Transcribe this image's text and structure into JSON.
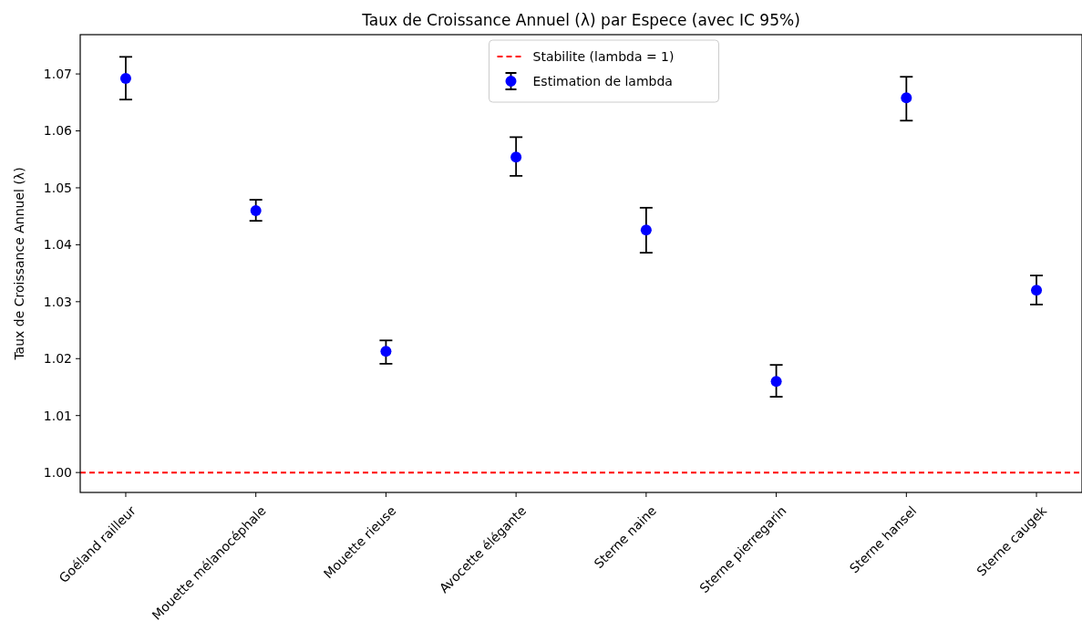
{
  "chart_data": {
    "type": "scatter",
    "title": "Taux de Croissance Annuel (λ) par Espece (avec IC 95%)",
    "ylabel": "Taux de Croissance Annuel (λ)",
    "categories": [
      "Goéland railleur",
      "Mouette mélanocéphale",
      "Mouette rieuse",
      "Avocette élégante",
      "Sterne naine",
      "Sterne pierregarin",
      "Sterne hansel",
      "Sterne caugek"
    ],
    "series": [
      {
        "name": "Estimation de lambda",
        "color": "#0000ff",
        "values": [
          1.0692,
          1.046,
          1.0213,
          1.0554,
          1.0426,
          1.016,
          1.0658,
          1.032
        ],
        "errors": [
          [
            1.0655,
            1.073
          ],
          [
            1.0442,
            1.0479
          ],
          [
            1.0191,
            1.0232
          ],
          [
            1.0521,
            1.0589
          ],
          [
            1.0386,
            1.0465
          ],
          [
            1.0133,
            1.0189
          ],
          [
            1.0618,
            1.0695
          ],
          [
            1.0295,
            1.0346
          ]
        ]
      }
    ],
    "ylim": [
      0.9965,
      1.0769
    ],
    "yticks": [
      {
        "value": 1,
        "label": "1.00"
      },
      {
        "value": 1.01,
        "label": "1.01"
      },
      {
        "value": 1.02,
        "label": "1.02"
      },
      {
        "value": 1.03,
        "label": "1.03"
      },
      {
        "value": 1.04,
        "label": "1.04"
      },
      {
        "value": 1.05,
        "label": "1.05"
      },
      {
        "value": 1.06,
        "label": "1.06"
      },
      {
        "value": 1.07,
        "label": "1.07"
      }
    ],
    "ref_lines": [
      {
        "axis": "y",
        "value": 1,
        "label": "Stabilite (lambda = 1)",
        "color": "#ff0000",
        "line_style": "dashed"
      }
    ],
    "legend": "top",
    "marker": "circle",
    "grid": false
  }
}
